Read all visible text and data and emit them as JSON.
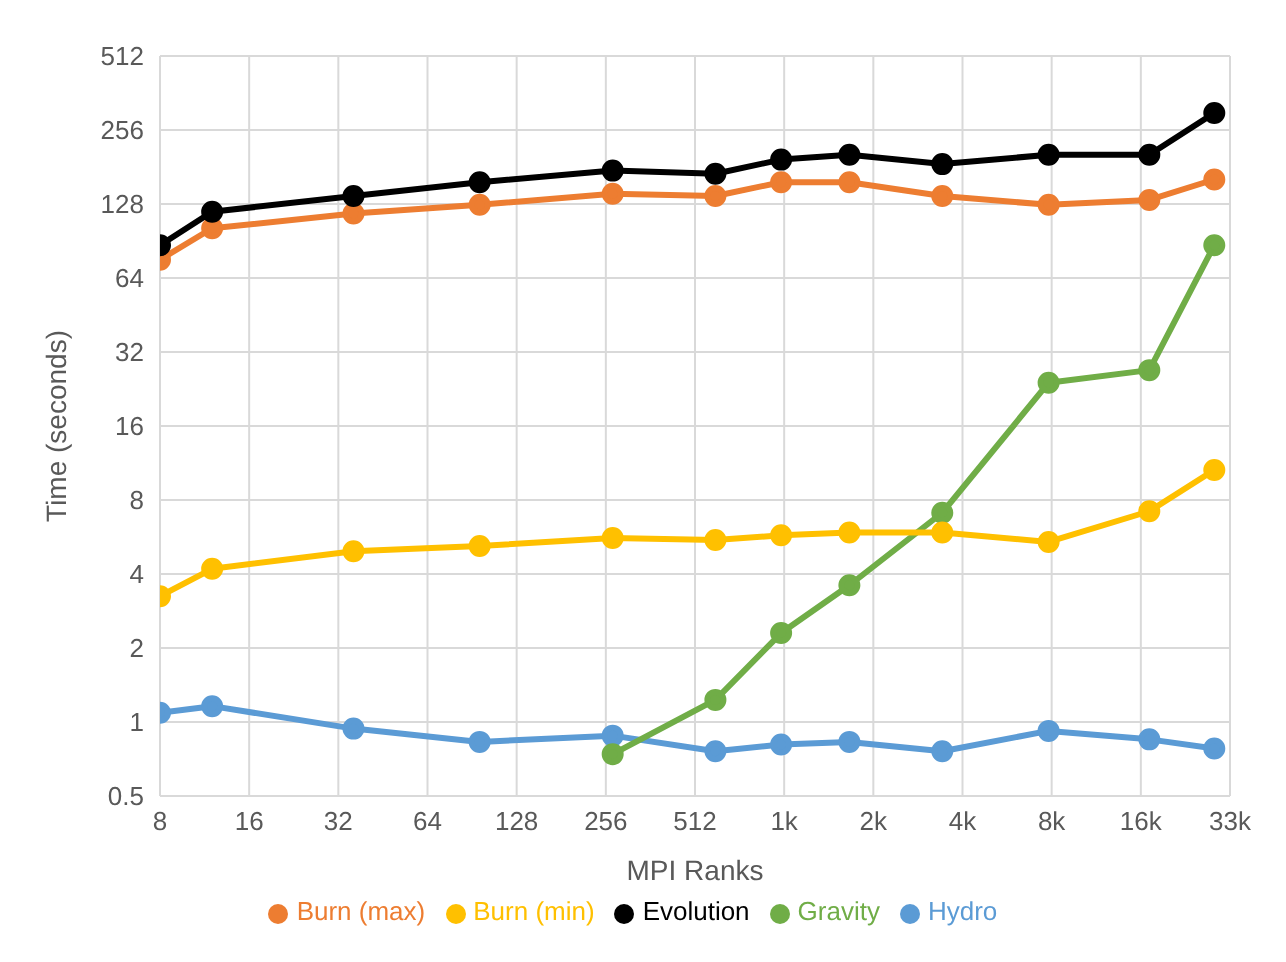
{
  "chart_data": {
    "type": "line",
    "xlabel": "MPI Ranks",
    "ylabel": "Time (seconds)",
    "log": "xy",
    "grid": true,
    "legend": "bottom",
    "marker": "circle",
    "line_style": "solid",
    "x": [
      8,
      12,
      36,
      96,
      270,
      600,
      1000,
      1700,
      3500,
      8000,
      17500,
      29000
    ],
    "xlim": [
      8,
      32768
    ],
    "xticks": [
      8,
      16,
      32,
      64,
      128,
      256,
      512,
      {
        "value": 1024,
        "label": "1k"
      },
      {
        "value": 2048,
        "label": "2k"
      },
      {
        "value": 4096,
        "label": "4k"
      },
      {
        "value": 8192,
        "label": "8k"
      },
      {
        "value": 16384,
        "label": "16k"
      },
      {
        "value": 32768,
        "label": "33k"
      }
    ],
    "ylim": [
      0.5,
      512
    ],
    "yticks": [
      0.5,
      1,
      2,
      4,
      8,
      16,
      32,
      64,
      128,
      256,
      512
    ],
    "series": [
      {
        "name": "Hydro",
        "color": "#5b9bd5",
        "values": [
          1.09,
          1.16,
          0.94,
          0.83,
          0.88,
          0.76,
          0.81,
          0.83,
          0.76,
          0.92,
          0.85,
          0.78
        ]
      },
      {
        "name": "Gravity",
        "color": "#70ad47",
        "values": [
          null,
          null,
          null,
          null,
          0.74,
          1.23,
          2.3,
          3.6,
          7.1,
          24,
          27,
          87
        ]
      },
      {
        "name": "Burn (min)",
        "color": "#ffc000",
        "values": [
          3.25,
          4.2,
          4.95,
          5.2,
          5.6,
          5.5,
          5.75,
          5.9,
          5.9,
          5.4,
          7.2,
          10.6
        ]
      },
      {
        "name": "Burn (max)",
        "color": "#ed7d31",
        "values": [
          76,
          102,
          117,
          127,
          141,
          138,
          157,
          157,
          138,
          127,
          133,
          161
        ]
      },
      {
        "name": "Evolution",
        "color": "#000000",
        "values": [
          87,
          119,
          138,
          157,
          175,
          170,
          194,
          203,
          186,
          203,
          203,
          300
        ]
      }
    ]
  }
}
